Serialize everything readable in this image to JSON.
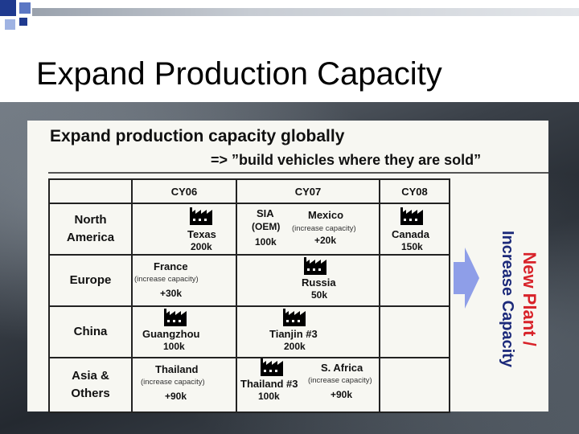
{
  "slide": {
    "title": "Expand Production Capacity"
  },
  "figure": {
    "heading": "Expand production capacity globally",
    "subheading": "=> ”build vehicles where they are sold”",
    "side_label_line1": "New Plant /",
    "side_label_line2": "Increase Capacity",
    "columns": [
      "CY06",
      "CY07",
      "CY08"
    ],
    "rows": [
      {
        "region_line1": "North",
        "region_line2": "America"
      },
      {
        "region_line1": "Europe",
        "region_line2": ""
      },
      {
        "region_line1": "China",
        "region_line2": ""
      },
      {
        "region_line1": "Asia &",
        "region_line2": "Others"
      }
    ],
    "cells": {
      "na_cy06_name": "Texas",
      "na_cy06_value": "200k",
      "na_cy07_a_name": "SIA",
      "na_cy07_a_note": "(OEM)",
      "na_cy07_a_value": "100k",
      "na_cy07_b_name": "Mexico",
      "na_cy07_b_note": "(increase capacity)",
      "na_cy07_b_value": "+20k",
      "na_cy08_name": "Canada",
      "na_cy08_value": "150k",
      "eu_cy06_name": "France",
      "eu_cy06_note": "(increase capacity)",
      "eu_cy06_value": "+30k",
      "eu_cy07_name": "Russia",
      "eu_cy07_value": "50k",
      "cn_cy06_name": "Guangzhou",
      "cn_cy06_value": "100k",
      "cn_cy07_name": "Tianjin #3",
      "cn_cy07_value": "200k",
      "as_cy06_name": "Thailand",
      "as_cy06_note": "(increase capacity)",
      "as_cy06_value": "+90k",
      "as_cy07_a_name": "Thailand #3",
      "as_cy07_a_value": "100k",
      "as_cy07_b_name": "S. Africa",
      "as_cy07_b_note": "(increase capacity)",
      "as_cy07_b_value": "+90k"
    },
    "icons": {
      "factory": "factory-icon",
      "arrow": "right-arrow-icon"
    },
    "colors": {
      "arrow": "#8e9ee8",
      "side_label": "#d8232a",
      "side_label_2": "#1c2a7a"
    }
  }
}
